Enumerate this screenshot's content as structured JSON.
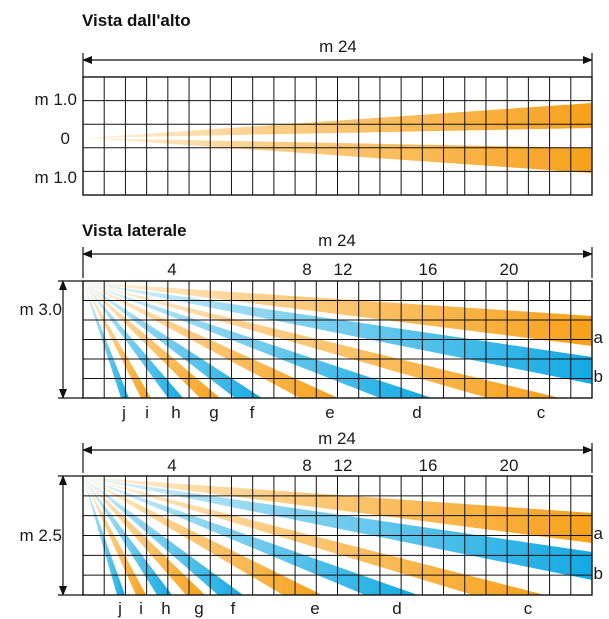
{
  "top_view": {
    "title": "Vista dall'alto",
    "span_label": "m 24",
    "y_labels": [
      "m 1.0",
      "0",
      "m 1.0"
    ]
  },
  "side_views": [
    {
      "title": "Vista laterale",
      "span_label": "m 24",
      "distance_labels": [
        "4",
        "8",
        "12",
        "16",
        "20"
      ],
      "height_label": "m 3.0",
      "curtain_letters": [
        "j",
        "i",
        "h",
        "g",
        "f",
        "e",
        "d",
        "c"
      ],
      "edge_letters": [
        "a",
        "b"
      ]
    },
    {
      "title": "",
      "span_label": "m 24",
      "distance_labels": [
        "4",
        "8",
        "12",
        "16",
        "20"
      ],
      "height_label": "m 2.5",
      "curtain_letters": [
        "j",
        "i",
        "h",
        "g",
        "f",
        "e",
        "d",
        "c"
      ],
      "edge_letters": [
        "a",
        "b"
      ]
    }
  ],
  "colors": {
    "beam_orange": "#f7a11a",
    "beam_orange_light": "#fde3b5",
    "beam_blue": "#19aee6",
    "beam_blue_light": "#bfe7f6",
    "grid": "#111111"
  }
}
